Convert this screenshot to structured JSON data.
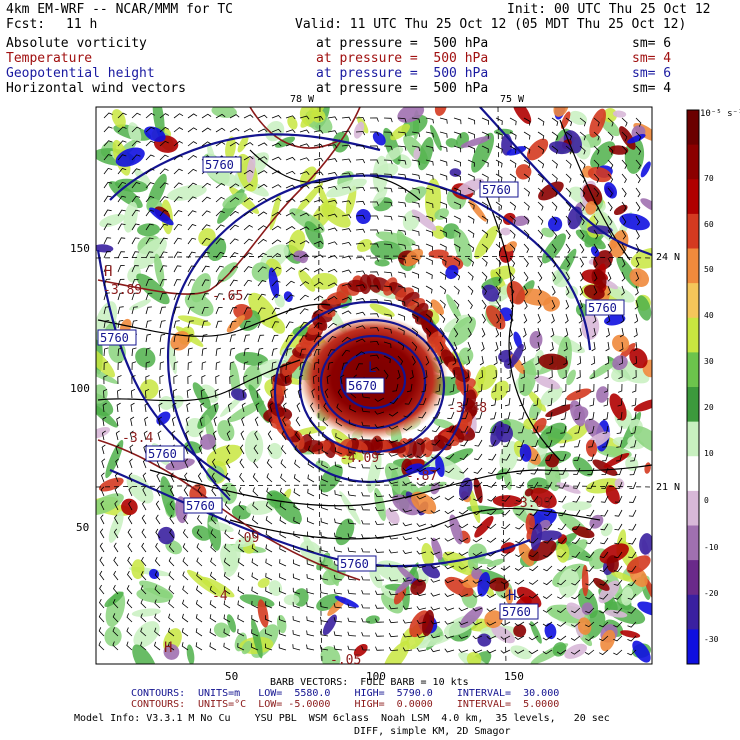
{
  "header": {
    "model": "4km EM-WRF -- NCAR/MMM for TC",
    "init": "Init: 00 UTC Thu 25 Oct 12",
    "fcst_label": "Fcst:",
    "fcst_value": "11 h",
    "valid": "Valid: 11 UTC Thu 25 Oct 12 (05 MDT Thu 25 Oct 12)"
  },
  "fields": [
    {
      "name": "Absolute vorticity",
      "level": "at pressure =  500 hPa",
      "sm": "sm= 6",
      "color": "#000000"
    },
    {
      "name": "Temperature",
      "level": "at pressure =  500 hPa",
      "sm": "sm= 4",
      "color": "#a01010"
    },
    {
      "name": "Geopotential height",
      "level": "at pressure =  500 hPa",
      "sm": "sm= 6",
      "color": "#1a1aa0"
    },
    {
      "name": "Horizontal wind vectors",
      "level": "at pressure =  500 hPa",
      "sm": "sm= 4",
      "color": "#000000"
    }
  ],
  "map": {
    "lon_labels": [
      "78 W",
      "75 W"
    ],
    "lat_labels": [
      "24 N",
      "21 N"
    ],
    "x_ticks": [
      "50",
      "100",
      "150"
    ],
    "y_ticks": [
      "150",
      "100",
      "50"
    ],
    "contour_labels": [
      "5760",
      "5760",
      "5760",
      "5760",
      "5760",
      "5760",
      "5760",
      "5670",
      "5760"
    ],
    "temp_labels": [
      "-3.89",
      "-.65",
      "-3.48",
      "-4.09",
      "-.87",
      "-3.09",
      "-4",
      "-.09",
      "-3.4",
      "-.05"
    ],
    "h_markers": [
      "H",
      "H",
      "H",
      "L"
    ]
  },
  "colorbar": {
    "unit": "10⁻⁵ s⁻¹",
    "ticks": [
      "70",
      "60",
      "50",
      "40",
      "30",
      "20",
      "10",
      "0",
      "-10",
      "-20",
      "-30"
    ],
    "colors": [
      "#6b0000",
      "#8b0000",
      "#b00000",
      "#d43a20",
      "#f08a3c",
      "#f5c65a",
      "#c8e640",
      "#6cc44c",
      "#3c9a3c",
      "#c8f0c0",
      "#ffffff",
      "#d8b8d8",
      "#a070b0",
      "#6a2a8a",
      "#3a20a0",
      "#1010e0"
    ]
  },
  "footer": {
    "barb": "BARB VECTORS:  FULL BARB = 10 kts",
    "contours1_label": "CONTOURS:",
    "contours1": "UNITS=m   LOW=  5580.0    HIGH=  5790.0    INTERVAL=  30.000",
    "contours2_label": "CONTOURS:",
    "contours2": "UNITS=°C  LOW= -5.0000    HIGH=  0.0000    INTERVAL=  5.0000",
    "model_info": "Model Info: V3.3.1 M No Cu    YSU PBL  WSM 6class  Noah LSM  4.0 km,  35 levels,   20 sec",
    "model_info2": "DIFF, simple KM, 2D Smagor"
  }
}
